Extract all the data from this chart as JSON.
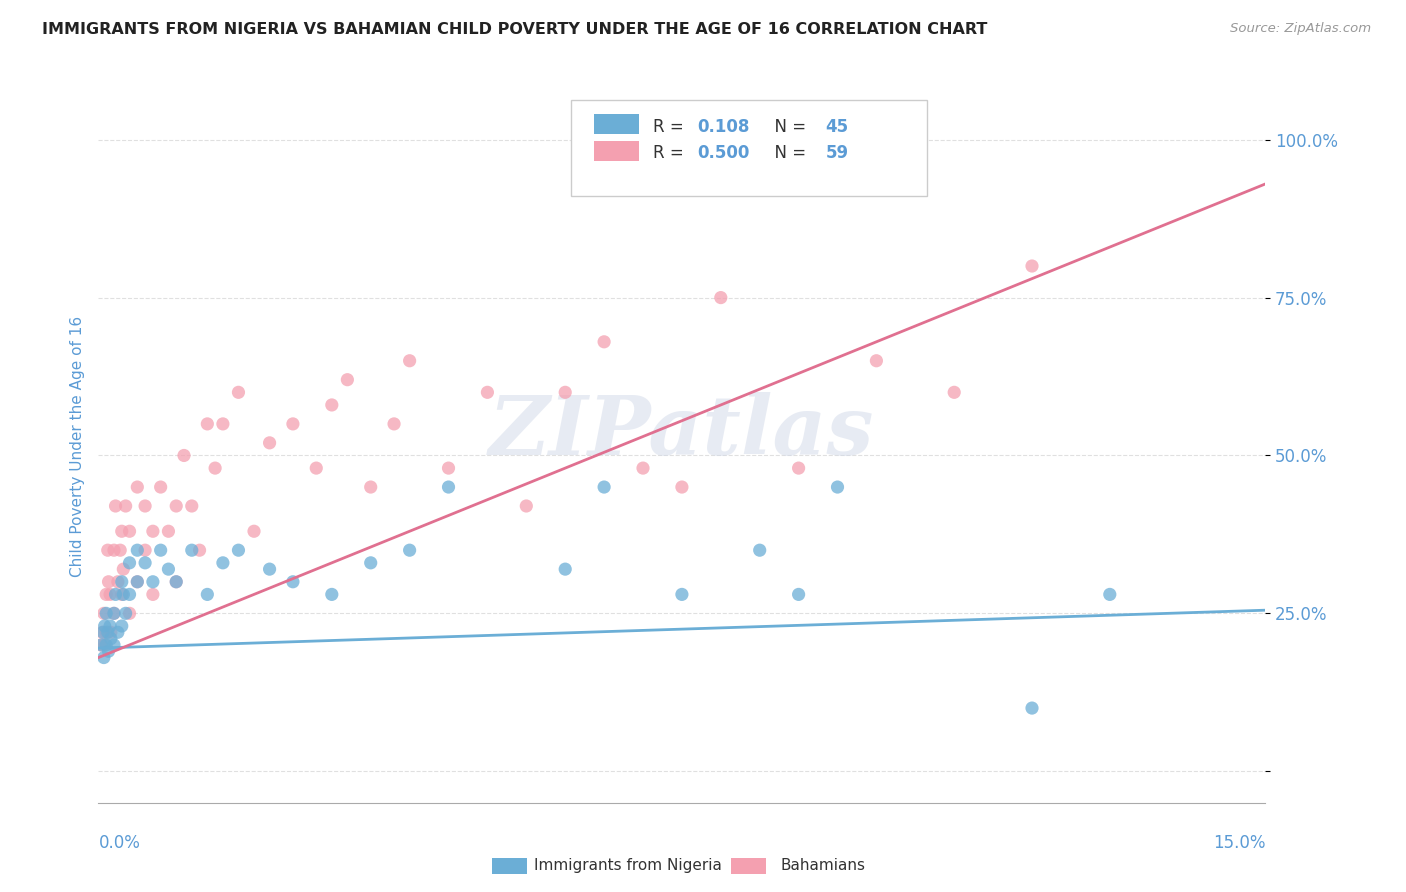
{
  "title": "IMMIGRANTS FROM NIGERIA VS BAHAMIAN CHILD POVERTY UNDER THE AGE OF 16 CORRELATION CHART",
  "source": "Source: ZipAtlas.com",
  "ylabel": "Child Poverty Under the Age of 16",
  "xlim": [
    0.0,
    0.15
  ],
  "ylim": [
    -0.05,
    1.08
  ],
  "yticks": [
    0.0,
    0.25,
    0.5,
    0.75,
    1.0
  ],
  "ytick_labels": [
    "",
    "25.0%",
    "50.0%",
    "75.0%",
    "100.0%"
  ],
  "blue_color": "#6baed6",
  "pink_color": "#f4a0b0",
  "blue_trend": [
    0.0,
    0.15,
    0.195,
    0.255
  ],
  "pink_trend": [
    0.0,
    0.15,
    0.18,
    0.93
  ],
  "blue_x": [
    0.0004,
    0.0006,
    0.0007,
    0.0008,
    0.001,
    0.001,
    0.0012,
    0.0013,
    0.0015,
    0.0016,
    0.002,
    0.002,
    0.0022,
    0.0025,
    0.003,
    0.003,
    0.0032,
    0.0035,
    0.004,
    0.004,
    0.005,
    0.005,
    0.006,
    0.007,
    0.008,
    0.009,
    0.01,
    0.012,
    0.014,
    0.016,
    0.018,
    0.022,
    0.025,
    0.03,
    0.035,
    0.04,
    0.045,
    0.06,
    0.065,
    0.075,
    0.085,
    0.09,
    0.095,
    0.12,
    0.13
  ],
  "blue_y": [
    0.2,
    0.22,
    0.18,
    0.23,
    0.2,
    0.25,
    0.22,
    0.19,
    0.23,
    0.21,
    0.25,
    0.2,
    0.28,
    0.22,
    0.3,
    0.23,
    0.28,
    0.25,
    0.33,
    0.28,
    0.3,
    0.35,
    0.33,
    0.3,
    0.35,
    0.32,
    0.3,
    0.35,
    0.28,
    0.33,
    0.35,
    0.32,
    0.3,
    0.28,
    0.33,
    0.35,
    0.45,
    0.32,
    0.45,
    0.28,
    0.35,
    0.28,
    0.45,
    0.1,
    0.28
  ],
  "pink_x": [
    0.0003,
    0.0005,
    0.0007,
    0.0008,
    0.001,
    0.001,
    0.0012,
    0.0013,
    0.0015,
    0.0016,
    0.002,
    0.002,
    0.0022,
    0.0025,
    0.0028,
    0.003,
    0.003,
    0.0032,
    0.0035,
    0.004,
    0.004,
    0.005,
    0.005,
    0.006,
    0.006,
    0.007,
    0.007,
    0.008,
    0.009,
    0.01,
    0.01,
    0.011,
    0.012,
    0.013,
    0.014,
    0.015,
    0.016,
    0.018,
    0.02,
    0.022,
    0.025,
    0.028,
    0.03,
    0.032,
    0.035,
    0.038,
    0.04,
    0.045,
    0.05,
    0.055,
    0.06,
    0.065,
    0.07,
    0.075,
    0.08,
    0.09,
    0.1,
    0.11,
    0.12
  ],
  "pink_y": [
    0.2,
    0.22,
    0.25,
    0.2,
    0.28,
    0.22,
    0.35,
    0.3,
    0.28,
    0.22,
    0.35,
    0.25,
    0.42,
    0.3,
    0.35,
    0.28,
    0.38,
    0.32,
    0.42,
    0.38,
    0.25,
    0.45,
    0.3,
    0.42,
    0.35,
    0.38,
    0.28,
    0.45,
    0.38,
    0.42,
    0.3,
    0.5,
    0.42,
    0.35,
    0.55,
    0.48,
    0.55,
    0.6,
    0.38,
    0.52,
    0.55,
    0.48,
    0.58,
    0.62,
    0.45,
    0.55,
    0.65,
    0.48,
    0.6,
    0.42,
    0.6,
    0.68,
    0.48,
    0.45,
    0.75,
    0.48,
    0.65,
    0.6,
    0.8
  ],
  "legend_blue_label": "R =  0.108   N = 45",
  "legend_pink_label": "R =  0.500   N = 59",
  "bottom_legend_blue": "Immigrants from Nigeria",
  "bottom_legend_pink": "Bahamians",
  "watermark": "ZIPatlas",
  "bg_color": "#ffffff",
  "grid_color": "#dddddd",
  "title_color": "#222222",
  "tick_color": "#5b9bd5",
  "ylabel_color": "#5b9bd5"
}
